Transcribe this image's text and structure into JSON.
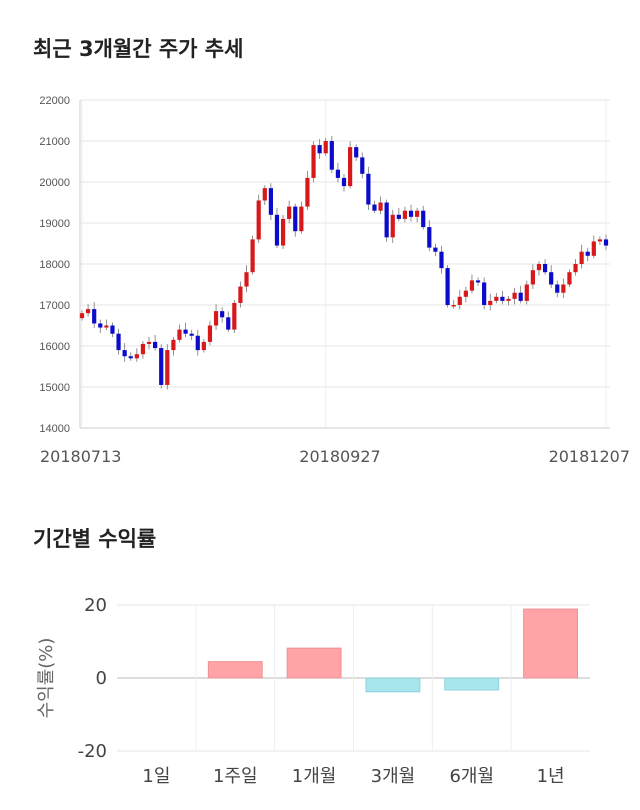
{
  "titles": {
    "price_trend": "최근 3개월간 주가 추세",
    "period_returns": "기간별 수익률"
  },
  "colors": {
    "up": "#d7191c",
    "down": "#0b0bcc",
    "positive_bar": "#ffa3a6",
    "negative_bar": "#a8e6ee"
  },
  "chart_data": [
    {
      "type": "candlestick",
      "title": "최근 3개월간 주가 추세",
      "ylim": [
        14000,
        22000
      ],
      "yticks": [
        14000,
        15000,
        16000,
        17000,
        18000,
        19000,
        20000,
        21000,
        22000
      ],
      "xticks": [
        "20180713",
        "20180927",
        "20181207"
      ],
      "grid": true,
      "closes": [
        16800,
        16900,
        16550,
        16450,
        16500,
        16300,
        15900,
        15750,
        15700,
        15800,
        16050,
        16100,
        15950,
        15050,
        15900,
        16150,
        16400,
        16300,
        16250,
        15900,
        16100,
        16500,
        16850,
        16700,
        16400,
        17050,
        17450,
        17800,
        18600,
        19550,
        19850,
        19200,
        18450,
        19100,
        19400,
        18800,
        19400,
        20100,
        20900,
        20700,
        21000,
        20300,
        20100,
        19900,
        20850,
        20600,
        20200,
        19450,
        19300,
        19500,
        18650,
        19200,
        19100,
        19300,
        19150,
        19300,
        18900,
        18400,
        18300,
        17900,
        17000,
        17000,
        17200,
        17350,
        17600,
        17550,
        17000,
        17100,
        17200,
        17100,
        17150,
        17300,
        17100,
        17500,
        17850,
        18000,
        17800,
        17500,
        17300,
        17500,
        17800,
        18000,
        18300,
        18200,
        18550,
        18600,
        18450
      ]
    },
    {
      "type": "bar",
      "title": "기간별 수익률",
      "ylabel": "수익률(%)",
      "categories": [
        "1일",
        "1주일",
        "1개월",
        "3개월",
        "6개월",
        "1년"
      ],
      "values": [
        0,
        4.5,
        8.2,
        -3.8,
        -3.3,
        18.9
      ],
      "ylim": [
        -20,
        20
      ],
      "yticks": [
        -20,
        0,
        20
      ],
      "grid": true
    }
  ]
}
